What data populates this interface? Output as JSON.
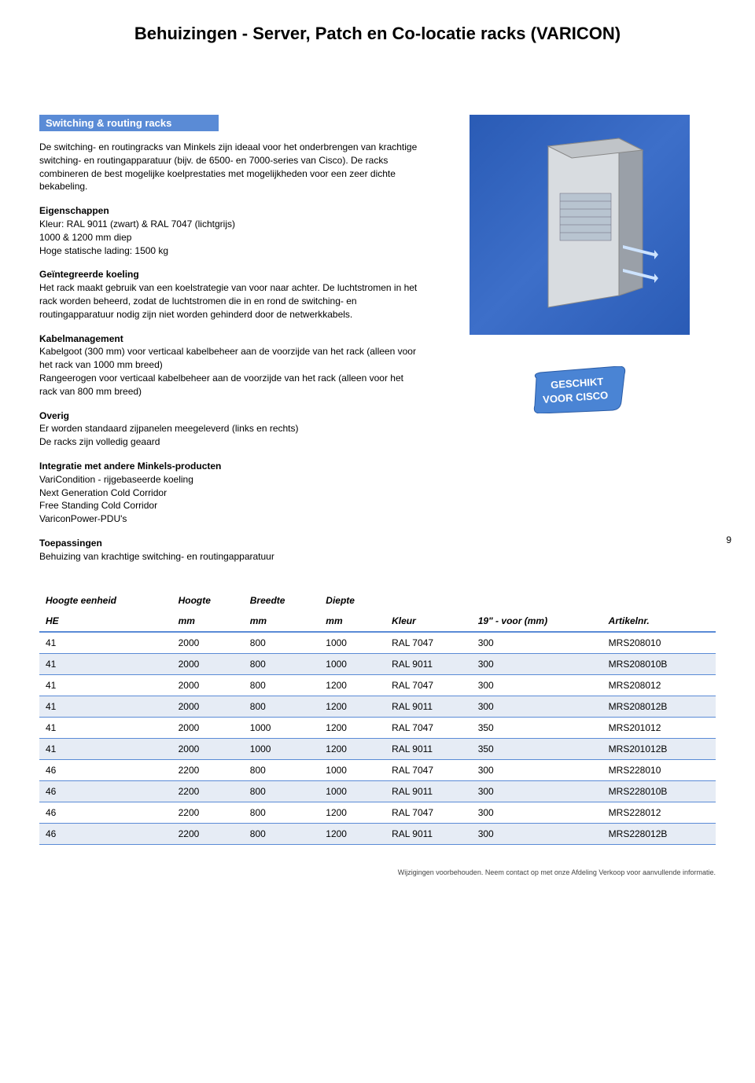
{
  "page_title": "Behuizingen - Server, Patch en Co-locatie racks (VARICON)",
  "page_number": "9",
  "section_banner": "Switching & routing racks",
  "intro": "De switching- en routingracks van Minkels zijn ideaal voor het onderbrengen van krachtige switching- en routingapparatuur (bijv. de 6500- en 7000-series van Cisco). De racks combineren de best mogelijke koelprestaties met mogelijkheden voor een zeer dichte bekabeling.",
  "eigenschappen": {
    "title": "Eigenschappen",
    "l1": "Kleur: RAL 9011 (zwart) & RAL 7047 (lichtgrijs)",
    "l2": "1000 & 1200 mm diep",
    "l3": "Hoge statische lading: 1500 kg"
  },
  "koeling": {
    "title": "Geïntegreerde koeling",
    "text": "Het rack maakt gebruik van een koelstrategie van voor naar achter. De luchtstromen in het rack worden beheerd, zodat de luchtstromen die in en rond de switching- en routingapparatuur nodig zijn niet worden gehinderd door de netwerkkabels."
  },
  "kabel": {
    "title": "Kabelmanagement",
    "l1": "Kabelgoot (300 mm) voor verticaal kabelbeheer aan de voorzijde van het rack (alleen voor het rack van 1000 mm breed)",
    "l2": "Rangeerogen voor verticaal kabelbeheer aan de voorzijde van het rack (alleen voor het rack van 800 mm breed)"
  },
  "overig": {
    "title": "Overig",
    "l1": "Er worden standaard zijpanelen meegeleverd (links en rechts)",
    "l2": "De racks zijn volledig geaard"
  },
  "integratie": {
    "title": "Integratie met andere Minkels-producten",
    "l1": "VariCondition - rijgebaseerde koeling",
    "l2": "Next Generation Cold Corridor",
    "l3": "Free Standing Cold Corridor",
    "l4": "VariconPower-PDU's"
  },
  "toepassingen": {
    "title": "Toepassingen",
    "text": "Behuizing van krachtige switching- en routingapparatuur"
  },
  "badge": {
    "line1": "GESCHIKT",
    "line2": "VOOR CISCO",
    "bg": "#4a84d4",
    "text_color": "#ffffff"
  },
  "table": {
    "header1": [
      "Hoogte eenheid",
      "Hoogte",
      "Breedte",
      "Diepte",
      "",
      "",
      ""
    ],
    "header2": [
      "HE",
      "mm",
      "mm",
      "mm",
      "Kleur",
      "19\" - voor (mm)",
      "Artikelnr."
    ],
    "rows": [
      [
        "41",
        "2000",
        "800",
        "1000",
        "RAL 7047",
        "300",
        "MRS208010"
      ],
      [
        "41",
        "2000",
        "800",
        "1000",
        "RAL 9011",
        "300",
        "MRS208010B"
      ],
      [
        "41",
        "2000",
        "800",
        "1200",
        "RAL 7047",
        "300",
        "MRS208012"
      ],
      [
        "41",
        "2000",
        "800",
        "1200",
        "RAL 9011",
        "300",
        "MRS208012B"
      ],
      [
        "41",
        "2000",
        "1000",
        "1200",
        "RAL 7047",
        "350",
        "MRS201012"
      ],
      [
        "41",
        "2000",
        "1000",
        "1200",
        "RAL 9011",
        "350",
        "MRS201012B"
      ],
      [
        "46",
        "2200",
        "800",
        "1000",
        "RAL 7047",
        "300",
        "MRS228010"
      ],
      [
        "46",
        "2200",
        "800",
        "1000",
        "RAL 9011",
        "300",
        "MRS228010B"
      ],
      [
        "46",
        "2200",
        "800",
        "1200",
        "RAL 7047",
        "300",
        "MRS228012"
      ],
      [
        "46",
        "2200",
        "800",
        "1200",
        "RAL 9011",
        "300",
        "MRS228012B"
      ]
    ],
    "shade_bg": "#e6ecf5",
    "border_color": "#5a8bd6"
  },
  "footer": "Wijzigingen voorbehouden. Neem contact op met onze Afdeling Verkoop voor aanvullende informatie."
}
